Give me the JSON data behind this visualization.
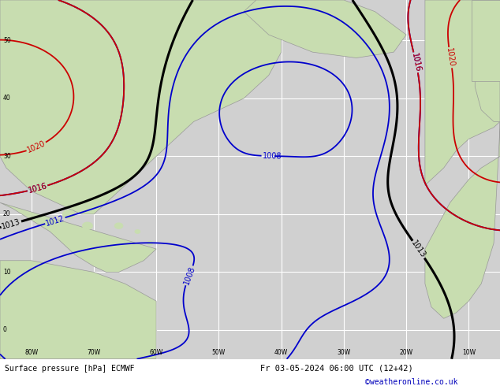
{
  "title_left": "Surface pressure [hPa] ECMWF",
  "title_right": "Fr 03-05-2024 06:00 UTC (12+42)",
  "credit": "©weatheronline.co.uk",
  "bg_ocean": "#d0d0d0",
  "bg_land": "#c8ddb0",
  "land_edge": "#999999",
  "grid_color": "#ffffff",
  "lon_min": -85,
  "lon_max": -5,
  "lat_min": -5,
  "lat_max": 57,
  "grid_lons": [
    -80,
    -70,
    -60,
    -50,
    -40,
    -30,
    -20,
    -10
  ],
  "grid_lats": [
    0,
    10,
    20,
    30,
    40,
    50
  ],
  "blue_levels": [
    1008,
    1012,
    1016
  ],
  "red_levels": [
    1016,
    1020
  ],
  "black_levels": [
    1013
  ]
}
